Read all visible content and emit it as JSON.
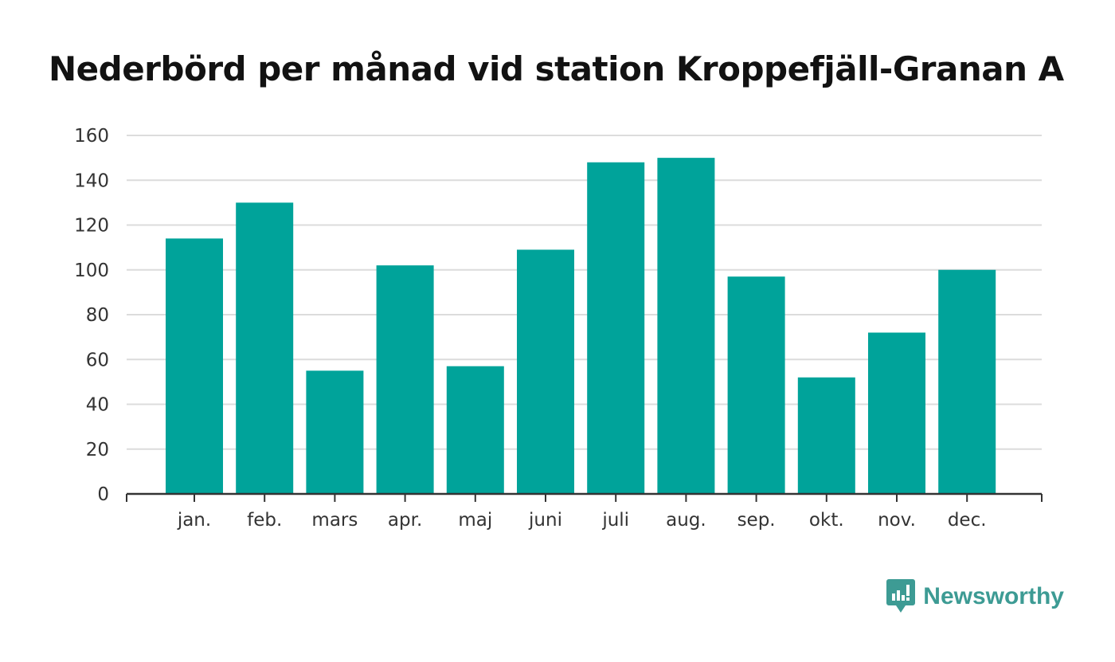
{
  "title": "Nederbörd per månad vid station Kroppefjäll-Granan A",
  "brand": {
    "name": "Newsworthy",
    "icon": "newsworthy-logo-icon",
    "color": "#3d9b94"
  },
  "chart_data": {
    "type": "bar",
    "title": "Nederbörd per månad vid station Kroppefjäll-Granan A",
    "categories": [
      "jan.",
      "feb.",
      "mars",
      "apr.",
      "maj",
      "juni",
      "juli",
      "aug.",
      "sep.",
      "okt.",
      "nov.",
      "dec."
    ],
    "values": [
      114,
      130,
      55,
      102,
      57,
      109,
      148,
      150,
      97,
      52,
      72,
      100
    ],
    "xlabel": "",
    "ylabel": "",
    "ylim": [
      0,
      160
    ],
    "yticks": [
      0,
      20,
      40,
      60,
      80,
      100,
      120,
      140,
      160
    ],
    "grid": true,
    "bar_color": "#00a39a"
  }
}
